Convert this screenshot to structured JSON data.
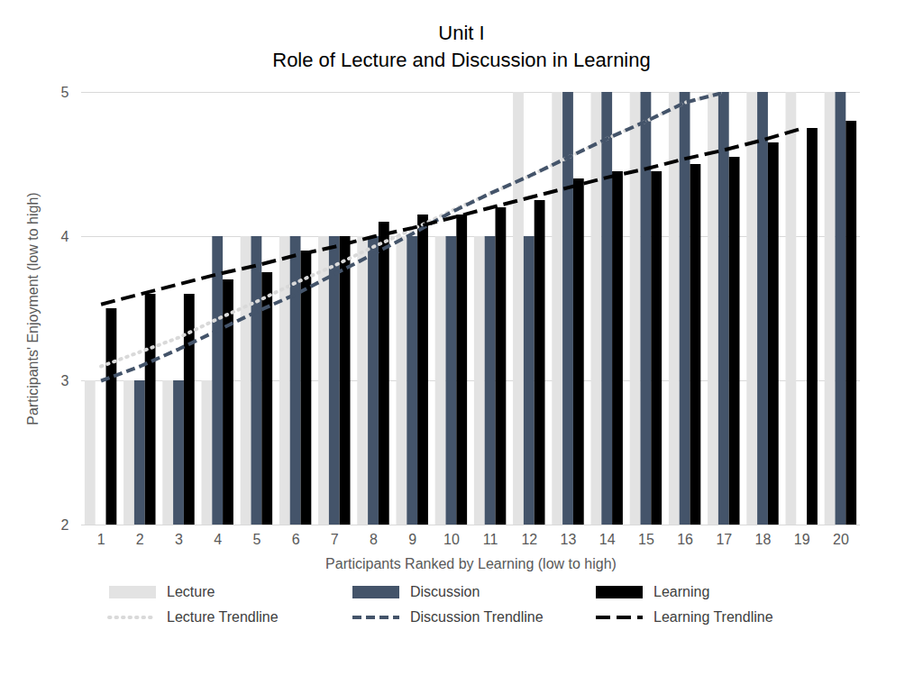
{
  "chart_data": {
    "type": "bar",
    "title": "Unit I",
    "subtitle": "Role of Lecture and Discussion in Learning",
    "x_label": "Participants Ranked by Learning (low to high)",
    "y_label": "Participants' Enjoyment (low to high)",
    "categories": [
      "1",
      "2",
      "3",
      "4",
      "5",
      "6",
      "7",
      "8",
      "9",
      "10",
      "11",
      "12",
      "13",
      "14",
      "15",
      "16",
      "17",
      "18",
      "19",
      "20"
    ],
    "ylim": [
      2,
      5
    ],
    "yticks": [
      2,
      3,
      4,
      5
    ],
    "grid": true,
    "legend": "bottom",
    "series": [
      {
        "name": "Lecture",
        "type": "bar",
        "color": "#e3e3e3",
        "values": [
          3,
          3,
          3,
          3,
          4,
          4,
          4,
          4,
          4,
          4,
          4,
          5,
          5,
          5,
          5,
          5,
          5,
          5,
          5,
          5
        ]
      },
      {
        "name": "Discussion",
        "type": "bar",
        "color": "#44546a",
        "values": [
          null,
          3,
          3,
          4,
          4,
          4,
          4,
          4,
          4,
          4,
          4,
          4,
          5,
          5,
          5,
          5,
          5,
          5,
          null,
          5
        ]
      },
      {
        "name": "Learning",
        "type": "bar",
        "color": "#000000",
        "values": [
          3.5,
          3.6,
          3.6,
          3.7,
          3.75,
          3.9,
          4.0,
          4.1,
          4.15,
          4.15,
          4.2,
          4.25,
          4.4,
          4.45,
          4.45,
          4.5,
          4.55,
          4.65,
          4.75,
          4.8
        ]
      },
      {
        "name": "Lecture Trendline",
        "type": "line",
        "line_style": "dotted",
        "color": "#d9d9d9",
        "values": [
          3.1,
          3.2,
          3.3,
          3.43,
          3.55,
          3.68,
          3.8,
          3.93,
          4.05,
          4.18,
          4.3,
          4.42,
          4.55,
          4.68,
          4.8,
          4.93,
          5.0,
          null,
          null,
          null
        ]
      },
      {
        "name": "Discussion Trendline",
        "type": "line",
        "line_style": "dashed",
        "color": "#44546a",
        "values": [
          3.0,
          3.1,
          3.22,
          3.35,
          3.48,
          3.6,
          3.74,
          3.88,
          4.02,
          4.17,
          4.3,
          4.42,
          4.55,
          4.68,
          4.8,
          4.93,
          5.0,
          null,
          null,
          null
        ]
      },
      {
        "name": "Learning Trendline",
        "type": "line",
        "line_style": "long_dash",
        "color": "#000000",
        "values": [
          3.53,
          3.6,
          3.67,
          3.74,
          3.8,
          3.87,
          3.93,
          4.0,
          4.06,
          4.13,
          4.2,
          4.27,
          4.34,
          4.41,
          4.47,
          4.54,
          4.6,
          4.67,
          4.75,
          null
        ]
      }
    ]
  }
}
